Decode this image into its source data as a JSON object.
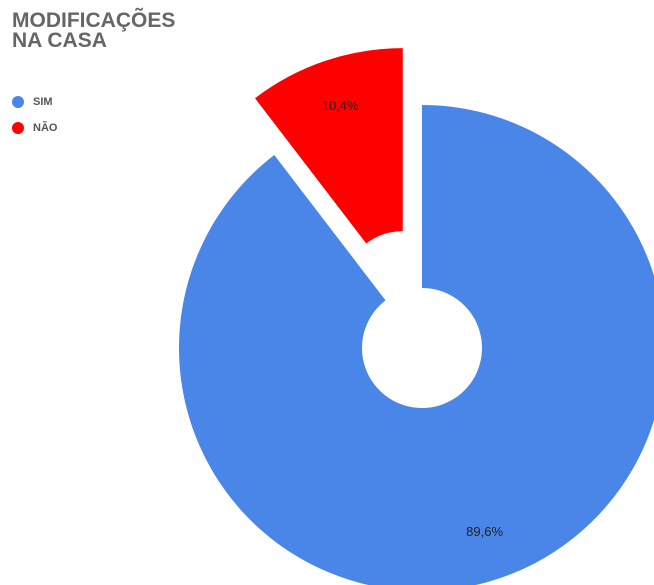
{
  "chart_data": {
    "type": "donut",
    "title": "MODIFICAÇÕES NA CASA",
    "categories": [
      "SIM",
      "NÃO"
    ],
    "values": [
      89.6,
      10.4
    ],
    "value_labels": [
      "89,6%",
      "10,4%"
    ],
    "colors": [
      "#4a86e8",
      "#ff0000"
    ]
  }
}
